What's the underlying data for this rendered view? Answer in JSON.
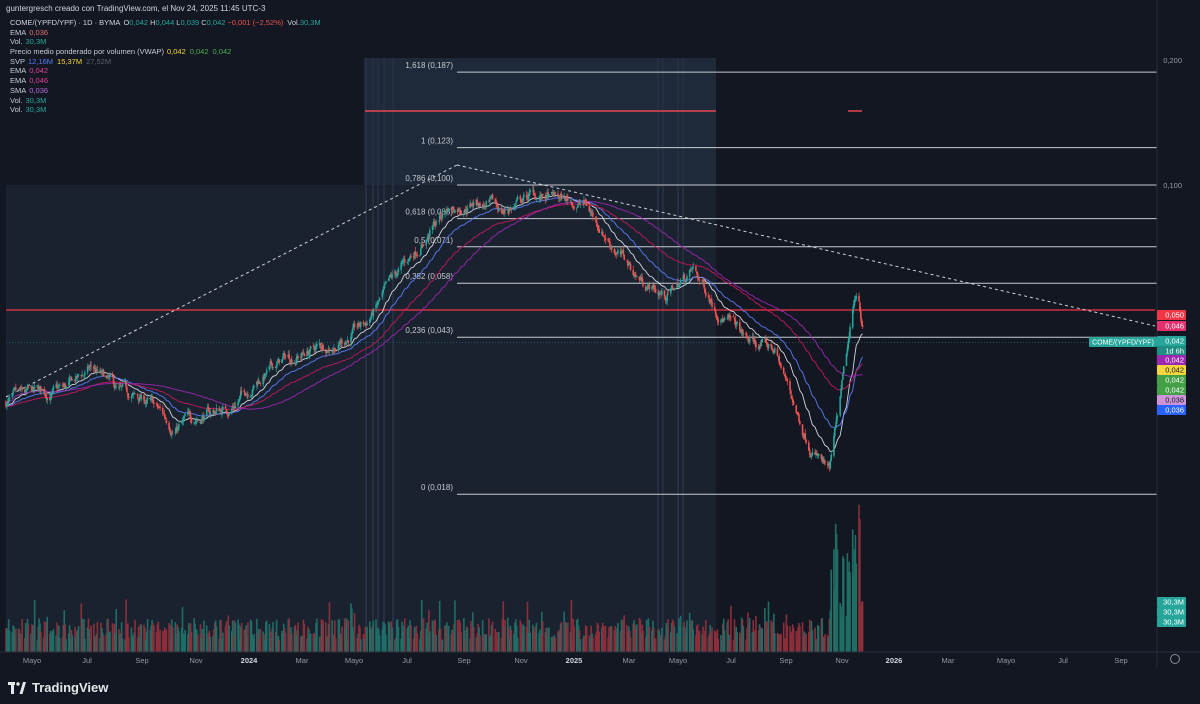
{
  "header": {
    "text": "guntergresch creado con TradingView.com, el Nov 24, 2025 11:45 UTC-3"
  },
  "legend": {
    "symbol": "COME/(YPFD/YPF) · 1D · BYMA",
    "ohlc": [
      {
        "k": "O",
        "v": "0,042"
      },
      {
        "k": "H",
        "v": "0,044"
      },
      {
        "k": "L",
        "v": "0,039"
      },
      {
        "k": "C",
        "v": "0,042"
      }
    ],
    "change": "−0,001 (−2,52%)",
    "vol_label": "Vol.",
    "vol_value": "30,3M",
    "rows": [
      {
        "label": "EMA",
        "values": [
          {
            "v": "0,036",
            "color": "#e57373"
          }
        ]
      },
      {
        "label": "Vol.",
        "values": [
          {
            "v": "30,3M",
            "color": "#26a69a"
          }
        ]
      },
      {
        "label": "Precio medio ponderado por volumen (VWAP)",
        "values": [
          {
            "v": "0,042",
            "color": "#f5d63d"
          },
          {
            "v": "0,042",
            "color": "#4caf50"
          },
          {
            "v": "0,042",
            "color": "#4caf50"
          }
        ]
      },
      {
        "label": "SVP",
        "values": [
          {
            "v": "12,16M",
            "color": "#5b7cf5"
          },
          {
            "v": "15,37M",
            "color": "#f5d63d"
          },
          {
            "v": "27,52M",
            "color": "#5d606b"
          }
        ]
      },
      {
        "label": "EMA",
        "values": [
          {
            "v": "0,042",
            "color": "#e0409a"
          }
        ]
      },
      {
        "label": "EMA",
        "values": [
          {
            "v": "0,046",
            "color": "#e0409a"
          }
        ]
      },
      {
        "label": "SMA",
        "values": [
          {
            "v": "0,036",
            "color": "#b86adf"
          }
        ]
      },
      {
        "label": "Vol.",
        "values": [
          {
            "v": "30,3M",
            "color": "#26a69a"
          }
        ]
      },
      {
        "label": "Vol.",
        "values": [
          {
            "v": "30,3M",
            "color": "#26a69a"
          }
        ]
      }
    ]
  },
  "price_axis": {
    "ticks": [
      "0,200",
      "0,100"
    ],
    "badges": [
      {
        "text": "0,050",
        "bg": "#f23645",
        "fg": "#ffffff"
      },
      {
        "text": "0,046",
        "bg": "#e0306e",
        "fg": "#ffffff"
      },
      {
        "text": "0,042",
        "bg": "#26a69a",
        "fg": "#ffffff"
      },
      {
        "text": "1d 6h",
        "bg": "#1f8f83",
        "fg": "#ffffff"
      },
      {
        "text": "0,042",
        "bg": "#9c27b0",
        "fg": "#ffffff"
      },
      {
        "text": "0,042",
        "bg": "#f5d63d",
        "fg": "#131722"
      },
      {
        "text": "0,042",
        "bg": "#43a047",
        "fg": "#ffffff"
      },
      {
        "text": "0,042",
        "bg": "#43a047",
        "fg": "#ffffff"
      },
      {
        "text": "0,036",
        "bg": "#ce93d8",
        "fg": "#131722"
      },
      {
        "text": "0,036",
        "bg": "#2962ff",
        "fg": "#ffffff"
      }
    ],
    "symbol_tag": "COME/(YPFD/YPF)",
    "vol_badges": [
      "30,3M",
      "30,3M",
      "30,3M"
    ]
  },
  "time_axis": {
    "labels": [
      {
        "t": "Mayo",
        "bold": false
      },
      {
        "t": "Jul",
        "bold": false
      },
      {
        "t": "Sep",
        "bold": false
      },
      {
        "t": "Nov",
        "bold": false
      },
      {
        "t": "2024",
        "bold": true
      },
      {
        "t": "Mar",
        "bold": false
      },
      {
        "t": "Mayo",
        "bold": false
      },
      {
        "t": "Jul",
        "bold": false
      },
      {
        "t": "Sep",
        "bold": false
      },
      {
        "t": "Nov",
        "bold": false
      },
      {
        "t": "2025",
        "bold": true
      },
      {
        "t": "Mar",
        "bold": false
      },
      {
        "t": "Mayo",
        "bold": false
      },
      {
        "t": "Jul",
        "bold": false
      },
      {
        "t": "Sep",
        "bold": false
      },
      {
        "t": "Nov",
        "bold": false
      },
      {
        "t": "2026",
        "bold": true
      },
      {
        "t": "Mar",
        "bold": false
      },
      {
        "t": "Mayo",
        "bold": false
      },
      {
        "t": "Jul",
        "bold": false
      },
      {
        "t": "Sep",
        "bold": false
      }
    ]
  },
  "chart_data": {
    "type": "candlestick",
    "scale": "log",
    "fibonacci": [
      {
        "level": "1,618",
        "price": 0.187,
        "label": "1,618 (0,187)"
      },
      {
        "level": "1",
        "price": 0.123,
        "label": "1 (0,123)"
      },
      {
        "level": "0,786",
        "price": 0.1,
        "label": "0,786 (0,100)"
      },
      {
        "level": "0,618",
        "price": 0.083,
        "label": "0,618 (0,083)"
      },
      {
        "level": "0,5",
        "price": 0.071,
        "label": "0,5 (0,071)"
      },
      {
        "level": "0,382",
        "price": 0.058,
        "label": "0,382 (0,058)"
      },
      {
        "level": "0,236",
        "price": 0.043,
        "label": "0,236 (0,043)"
      },
      {
        "level": "0",
        "price": 0.018,
        "label": "0 (0,018)"
      }
    ],
    "horizontal_lines": [
      0.05
    ],
    "price_path": [
      [
        "2023-04",
        0.03
      ],
      [
        "2023-05",
        0.031
      ],
      [
        "2023-06",
        0.032
      ],
      [
        "2023-07",
        0.036
      ],
      [
        "2023-08",
        0.031
      ],
      [
        "2023-09",
        0.03
      ],
      [
        "2023-10",
        0.026
      ],
      [
        "2023-11",
        0.028
      ],
      [
        "2023-12",
        0.029
      ],
      [
        "2024-01",
        0.034
      ],
      [
        "2024-02",
        0.038
      ],
      [
        "2024-03",
        0.04
      ],
      [
        "2024-04",
        0.042
      ],
      [
        "2024-05",
        0.046
      ],
      [
        "2024-06",
        0.058
      ],
      [
        "2024-07",
        0.072
      ],
      [
        "2024-08",
        0.088
      ],
      [
        "2024-09",
        0.092
      ],
      [
        "2024-10",
        0.086
      ],
      [
        "2024-11",
        0.094
      ],
      [
        "2024-12",
        0.092
      ],
      [
        "2025-01",
        0.09
      ],
      [
        "2025-02",
        0.072
      ],
      [
        "2025-03",
        0.06
      ],
      [
        "2025-04",
        0.054
      ],
      [
        "2025-05",
        0.062
      ],
      [
        "2025-06",
        0.05
      ],
      [
        "2025-07",
        0.042
      ],
      [
        "2025-08",
        0.04
      ],
      [
        "2025-09",
        0.026
      ],
      [
        "2025-10",
        0.02
      ],
      [
        "2025-11",
        0.056
      ],
      [
        "2025-11-24",
        0.042
      ]
    ]
  }
}
